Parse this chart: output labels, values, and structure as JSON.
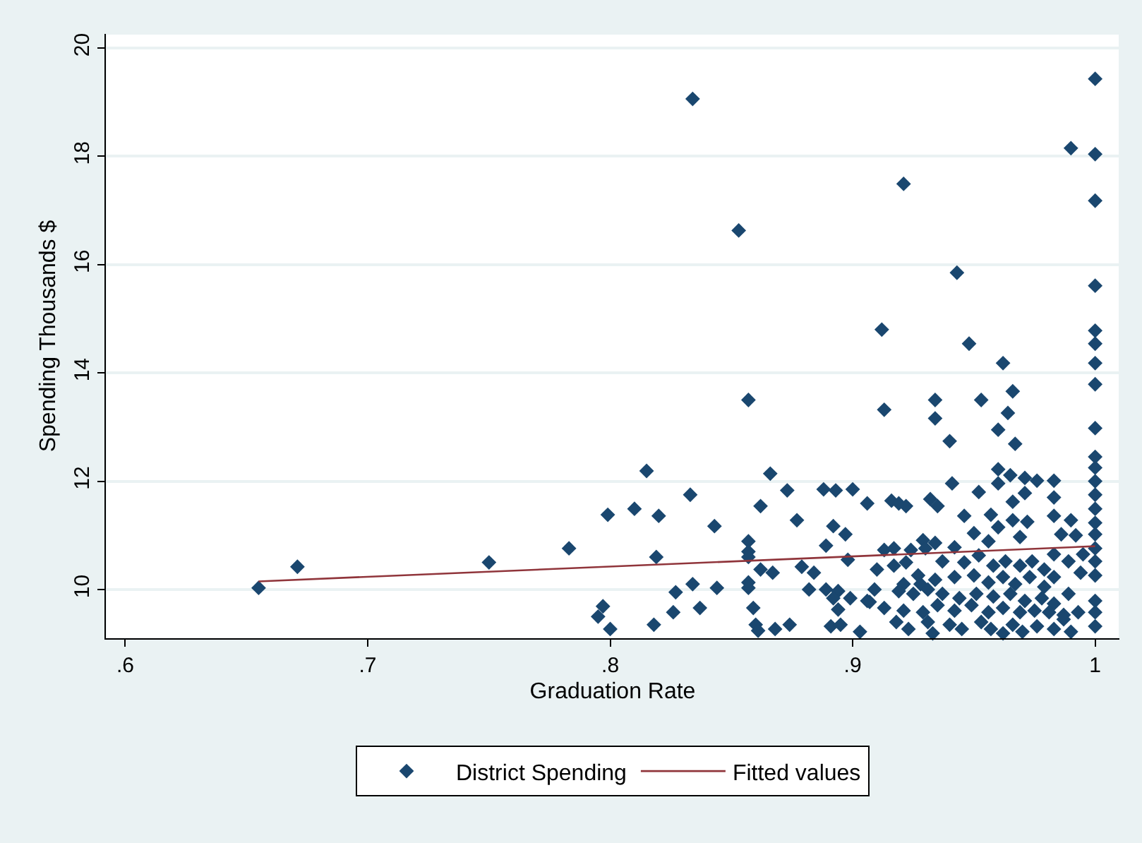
{
  "chart_data": {
    "type": "scatter",
    "xlabel": "Graduation Rate",
    "ylabel": "Spending Thousands $",
    "xlim": [
      0.592,
      1.01
    ],
    "ylim": [
      9.1,
      20.26
    ],
    "xticks": [
      {
        "value": 0.6,
        "label": ".6"
      },
      {
        "value": 0.7,
        "label": ".7"
      },
      {
        "value": 0.8,
        "label": ".8"
      },
      {
        "value": 0.9,
        "label": ".9"
      },
      {
        "value": 1,
        "label": "1"
      }
    ],
    "yticks": [
      10,
      12,
      14,
      16,
      18,
      20
    ],
    "grid": "y",
    "legend": "bottom",
    "marker": "diamond",
    "series": [
      {
        "name": "District Spending",
        "color": "#1a476f",
        "x": [
          0.655,
          0.671,
          0.75,
          0.783,
          0.799,
          0.81,
          0.797,
          0.795,
          0.8,
          0.857,
          0.815,
          0.866,
          0.833,
          0.82,
          0.862,
          0.873,
          0.888,
          0.893,
          0.9,
          0.906,
          0.843,
          0.877,
          0.892,
          0.897,
          0.857,
          0.857,
          0.857,
          0.889,
          0.898,
          0.819,
          0.862,
          0.867,
          0.879,
          0.884,
          0.834,
          0.844,
          0.857,
          0.857,
          0.882,
          0.889,
          0.894,
          0.827,
          0.892,
          0.899,
          0.894,
          0.907,
          0.826,
          0.837,
          0.859,
          0.818,
          0.86,
          0.861,
          0.868,
          0.874,
          0.891,
          0.895,
          0.903,
          0.834,
          1.0,
          0.99,
          1.0,
          0.921,
          1.0,
          0.853,
          0.943,
          1.0,
          0.912,
          0.948,
          0.962,
          1.0,
          1.0,
          1.0,
          1.0,
          0.913,
          0.934,
          0.934,
          0.953,
          0.966,
          0.964,
          0.96,
          0.967,
          0.94,
          1.0,
          1.0,
          1.0,
          1.0,
          1.0,
          1.0,
          1.0,
          1.0,
          1.0,
          1.0,
          1.0,
          1.0,
          1.0,
          1.0,
          0.916,
          0.919,
          0.922,
          0.932,
          0.935,
          0.941,
          0.952,
          0.96,
          0.965,
          0.96,
          0.966,
          0.971,
          0.971,
          0.976,
          0.983,
          0.983,
          0.946,
          0.957,
          0.96,
          0.966,
          0.972,
          0.983,
          0.99,
          0.986,
          0.992,
          0.95,
          0.929,
          0.913,
          0.917,
          0.924,
          0.93,
          0.934,
          0.942,
          0.956,
          0.969,
          0.983,
          0.995,
          0.91,
          0.917,
          0.922,
          0.927,
          0.937,
          0.946,
          0.952,
          0.958,
          0.963,
          0.969,
          0.974,
          0.979,
          0.989,
          0.994,
          0.921,
          0.928,
          0.934,
          0.942,
          0.95,
          0.956,
          0.962,
          0.967,
          0.973,
          0.979,
          0.983,
          0.909,
          0.919,
          0.925,
          0.931,
          0.937,
          0.944,
          0.951,
          0.958,
          0.965,
          0.971,
          0.978,
          0.983,
          0.989,
          0.906,
          0.913,
          0.921,
          0.929,
          0.935,
          0.942,
          0.949,
          0.956,
          0.962,
          0.969,
          0.975,
          0.981,
          0.987,
          0.993,
          0.918,
          0.923,
          0.931,
          0.933,
          0.94,
          0.945,
          0.953,
          0.957,
          0.962,
          0.966,
          0.97,
          0.976,
          0.983,
          0.99,
          0.987
        ],
        "values": [
          10.03,
          10.42,
          10.5,
          10.76,
          11.38,
          11.49,
          9.69,
          9.5,
          9.27,
          13.5,
          12.19,
          12.14,
          11.75,
          11.36,
          11.54,
          11.83,
          11.85,
          11.83,
          11.85,
          11.59,
          11.17,
          11.28,
          11.17,
          11.02,
          10.89,
          10.7,
          10.6,
          10.81,
          10.55,
          10.6,
          10.37,
          10.31,
          10.42,
          10.31,
          10.1,
          10.03,
          10.13,
          10.03,
          10.0,
          10.0,
          9.97,
          9.95,
          9.84,
          9.84,
          9.63,
          9.77,
          9.58,
          9.66,
          9.66,
          9.35,
          9.35,
          9.24,
          9.27,
          9.35,
          9.32,
          9.35,
          9.22,
          19.06,
          19.43,
          18.15,
          18.04,
          17.49,
          17.18,
          16.63,
          15.85,
          15.61,
          14.8,
          14.54,
          14.18,
          14.78,
          14.54,
          14.18,
          13.79,
          13.32,
          13.5,
          13.16,
          13.5,
          13.66,
          13.26,
          12.95,
          12.69,
          12.74,
          12.98,
          12.45,
          12.25,
          12.0,
          11.75,
          11.49,
          11.23,
          11.02,
          10.76,
          10.52,
          10.26,
          9.79,
          9.58,
          9.32,
          11.64,
          11.59,
          11.54,
          11.67,
          11.54,
          11.96,
          11.8,
          12.22,
          12.11,
          11.96,
          11.62,
          12.06,
          11.78,
          12.01,
          12.01,
          11.7,
          11.36,
          11.38,
          11.15,
          11.28,
          11.25,
          11.36,
          11.28,
          11.02,
          11.0,
          11.04,
          10.91,
          10.73,
          10.76,
          10.73,
          10.76,
          10.86,
          10.78,
          10.89,
          10.97,
          10.65,
          10.65,
          10.37,
          10.44,
          10.5,
          10.26,
          10.52,
          10.5,
          10.63,
          10.44,
          10.52,
          10.44,
          10.52,
          10.37,
          10.52,
          10.31,
          10.1,
          10.1,
          10.18,
          10.23,
          10.26,
          10.13,
          10.23,
          10.1,
          10.23,
          10.05,
          10.23,
          10.0,
          9.97,
          9.92,
          10.0,
          9.92,
          9.84,
          9.92,
          9.87,
          9.92,
          9.79,
          9.84,
          9.74,
          9.92,
          9.79,
          9.66,
          9.61,
          9.58,
          9.71,
          9.61,
          9.71,
          9.58,
          9.66,
          9.58,
          9.61,
          9.58,
          9.53,
          9.58,
          9.4,
          9.27,
          9.4,
          9.19,
          9.35,
          9.27,
          9.4,
          9.27,
          9.19,
          9.35,
          9.22,
          9.32,
          9.27,
          9.22,
          9.45
        ]
      },
      {
        "name": "Fitted values",
        "type": "line",
        "color": "#90353b",
        "marker": "none",
        "line_style": "solid",
        "x": [
          0.655,
          1.0
        ],
        "values": [
          10.15,
          10.8
        ]
      }
    ]
  }
}
